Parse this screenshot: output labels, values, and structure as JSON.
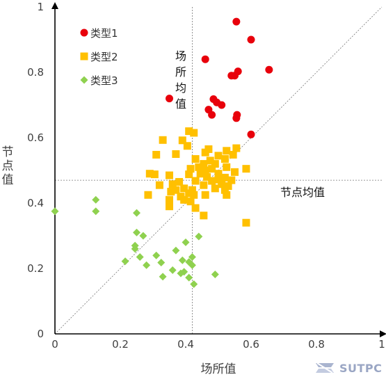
{
  "chart_data": {
    "type": "scatter",
    "xlabel": "场所值",
    "ylabel": "节点值",
    "xlim": [
      0,
      1
    ],
    "ylim": [
      0,
      1
    ],
    "x_ticks": [
      "0",
      "0.2",
      "0.4",
      "0.6",
      "0.8",
      "1"
    ],
    "y_ticks": [
      "0",
      "0.2",
      "0.4",
      "0.6",
      "0.8",
      "1"
    ],
    "legend_position": "top-left",
    "reference_lines": {
      "vertical_x": 0.42,
      "vertical_label": "场所均值",
      "horizontal_y": 0.47,
      "horizontal_label": "节点均值",
      "diagonal": true
    },
    "series": [
      {
        "name": "类型1",
        "marker": "circle",
        "color": "#e8000b",
        "points": [
          [
            0.555,
            0.955
          ],
          [
            0.6,
            0.9
          ],
          [
            0.46,
            0.84
          ],
          [
            0.655,
            0.808
          ],
          [
            0.56,
            0.803
          ],
          [
            0.54,
            0.79
          ],
          [
            0.55,
            0.79
          ],
          [
            0.35,
            0.72
          ],
          [
            0.485,
            0.718
          ],
          [
            0.495,
            0.708
          ],
          [
            0.51,
            0.7
          ],
          [
            0.47,
            0.686
          ],
          [
            0.48,
            0.67
          ],
          [
            0.557,
            0.67
          ],
          [
            0.555,
            0.66
          ],
          [
            0.6,
            0.61
          ]
        ]
      },
      {
        "name": "类型2",
        "marker": "square",
        "color": "#ffc000",
        "points": [
          [
            0.41,
            0.62
          ],
          [
            0.425,
            0.615
          ],
          [
            0.33,
            0.593
          ],
          [
            0.39,
            0.592
          ],
          [
            0.405,
            0.575
          ],
          [
            0.47,
            0.565
          ],
          [
            0.555,
            0.568
          ],
          [
            0.31,
            0.548
          ],
          [
            0.525,
            0.56
          ],
          [
            0.37,
            0.55
          ],
          [
            0.46,
            0.555
          ],
          [
            0.5,
            0.545
          ],
          [
            0.545,
            0.548
          ],
          [
            0.43,
            0.535
          ],
          [
            0.475,
            0.53
          ],
          [
            0.52,
            0.535
          ],
          [
            0.455,
            0.52
          ],
          [
            0.49,
            0.52
          ],
          [
            0.44,
            0.51
          ],
          [
            0.415,
            0.505
          ],
          [
            0.46,
            0.5
          ],
          [
            0.48,
            0.505
          ],
          [
            0.525,
            0.51
          ],
          [
            0.585,
            0.505
          ],
          [
            0.29,
            0.49
          ],
          [
            0.305,
            0.488
          ],
          [
            0.35,
            0.485
          ],
          [
            0.41,
            0.488
          ],
          [
            0.445,
            0.49
          ],
          [
            0.5,
            0.49
          ],
          [
            0.55,
            0.495
          ],
          [
            0.465,
            0.48
          ],
          [
            0.52,
            0.478
          ],
          [
            0.38,
            0.465
          ],
          [
            0.43,
            0.468
          ],
          [
            0.48,
            0.468
          ],
          [
            0.5,
            0.472
          ],
          [
            0.54,
            0.47
          ],
          [
            0.32,
            0.455
          ],
          [
            0.36,
            0.458
          ],
          [
            0.455,
            0.455
          ],
          [
            0.51,
            0.458
          ],
          [
            0.53,
            0.452
          ],
          [
            0.37,
            0.44
          ],
          [
            0.395,
            0.445
          ],
          [
            0.42,
            0.44
          ],
          [
            0.49,
            0.445
          ],
          [
            0.52,
            0.44
          ],
          [
            0.355,
            0.435
          ],
          [
            0.41,
            0.43
          ],
          [
            0.285,
            0.425
          ],
          [
            0.385,
            0.42
          ],
          [
            0.425,
            0.425
          ],
          [
            0.46,
            0.425
          ],
          [
            0.525,
            0.425
          ],
          [
            0.35,
            0.41
          ],
          [
            0.395,
            0.41
          ],
          [
            0.415,
            0.405
          ],
          [
            0.35,
            0.39
          ],
          [
            0.43,
            0.385
          ],
          [
            0.455,
            0.362
          ],
          [
            0.585,
            0.34
          ]
        ]
      },
      {
        "name": "类型3",
        "marker": "diamond",
        "color": "#8fd14f",
        "points": [
          [
            0.0,
            0.375
          ],
          [
            0.125,
            0.41
          ],
          [
            0.125,
            0.375
          ],
          [
            0.25,
            0.37
          ],
          [
            0.25,
            0.31
          ],
          [
            0.27,
            0.3
          ],
          [
            0.44,
            0.298
          ],
          [
            0.4,
            0.28
          ],
          [
            0.245,
            0.27
          ],
          [
            0.245,
            0.26
          ],
          [
            0.37,
            0.255
          ],
          [
            0.31,
            0.24
          ],
          [
            0.26,
            0.235
          ],
          [
            0.42,
            0.235
          ],
          [
            0.215,
            0.222
          ],
          [
            0.39,
            0.225
          ],
          [
            0.325,
            0.218
          ],
          [
            0.41,
            0.22
          ],
          [
            0.28,
            0.21
          ],
          [
            0.42,
            0.21
          ],
          [
            0.36,
            0.195
          ],
          [
            0.395,
            0.19
          ],
          [
            0.385,
            0.185
          ],
          [
            0.49,
            0.182
          ],
          [
            0.33,
            0.175
          ],
          [
            0.41,
            0.172
          ],
          [
            0.425,
            0.152
          ]
        ]
      }
    ]
  },
  "watermark": {
    "text": "SUTPC",
    "icon": "sutpc-logo-icon"
  }
}
